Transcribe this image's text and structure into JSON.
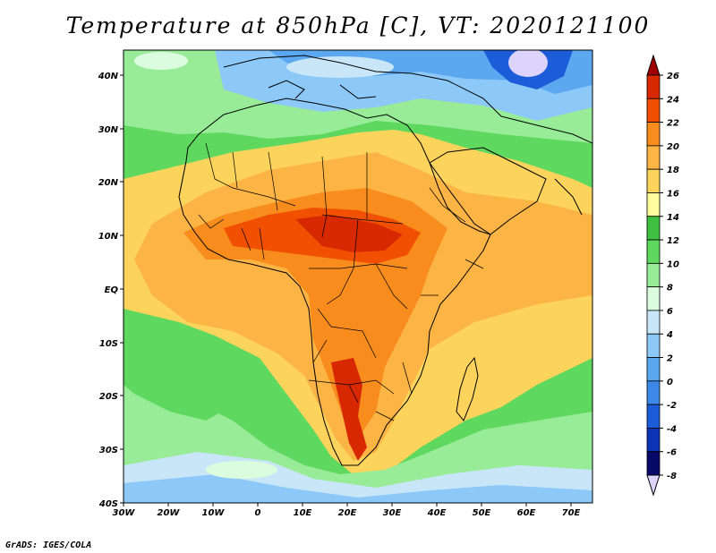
{
  "title": "Temperature at 850hPa [C], VT: 2020121100",
  "credit": "GrADS: IGES/COLA",
  "map": {
    "lon_labels": [
      "30W",
      "20W",
      "10W",
      "0",
      "10E",
      "20E",
      "30E",
      "40E",
      "50E",
      "60E",
      "70E"
    ],
    "lat_labels": [
      "40N",
      "30N",
      "20N",
      "10N",
      "EQ",
      "10S",
      "20S",
      "30S",
      "40S"
    ],
    "lon_range": [
      -30,
      75
    ],
    "lat_range": [
      -40,
      44
    ]
  },
  "colorbar": {
    "levels": [
      "26",
      "24",
      "22",
      "20",
      "18",
      "16",
      "14",
      "12",
      "10",
      "8",
      "6",
      "4",
      "2",
      "0",
      "-2",
      "-4",
      "-6",
      "-8"
    ],
    "colors": [
      "#a00000",
      "#d82800",
      "#f05000",
      "#f88c1c",
      "#fcb444",
      "#fcd45c",
      "#fcfc9c",
      "#40c040",
      "#5ed85e",
      "#98ec98",
      "#dcfce0",
      "#c8e6f8",
      "#8cc8f8",
      "#5ca8f0",
      "#3c88e8",
      "#1c5cd8",
      "#0c34b4",
      "#080868",
      "#dcd4fc"
    ]
  }
}
